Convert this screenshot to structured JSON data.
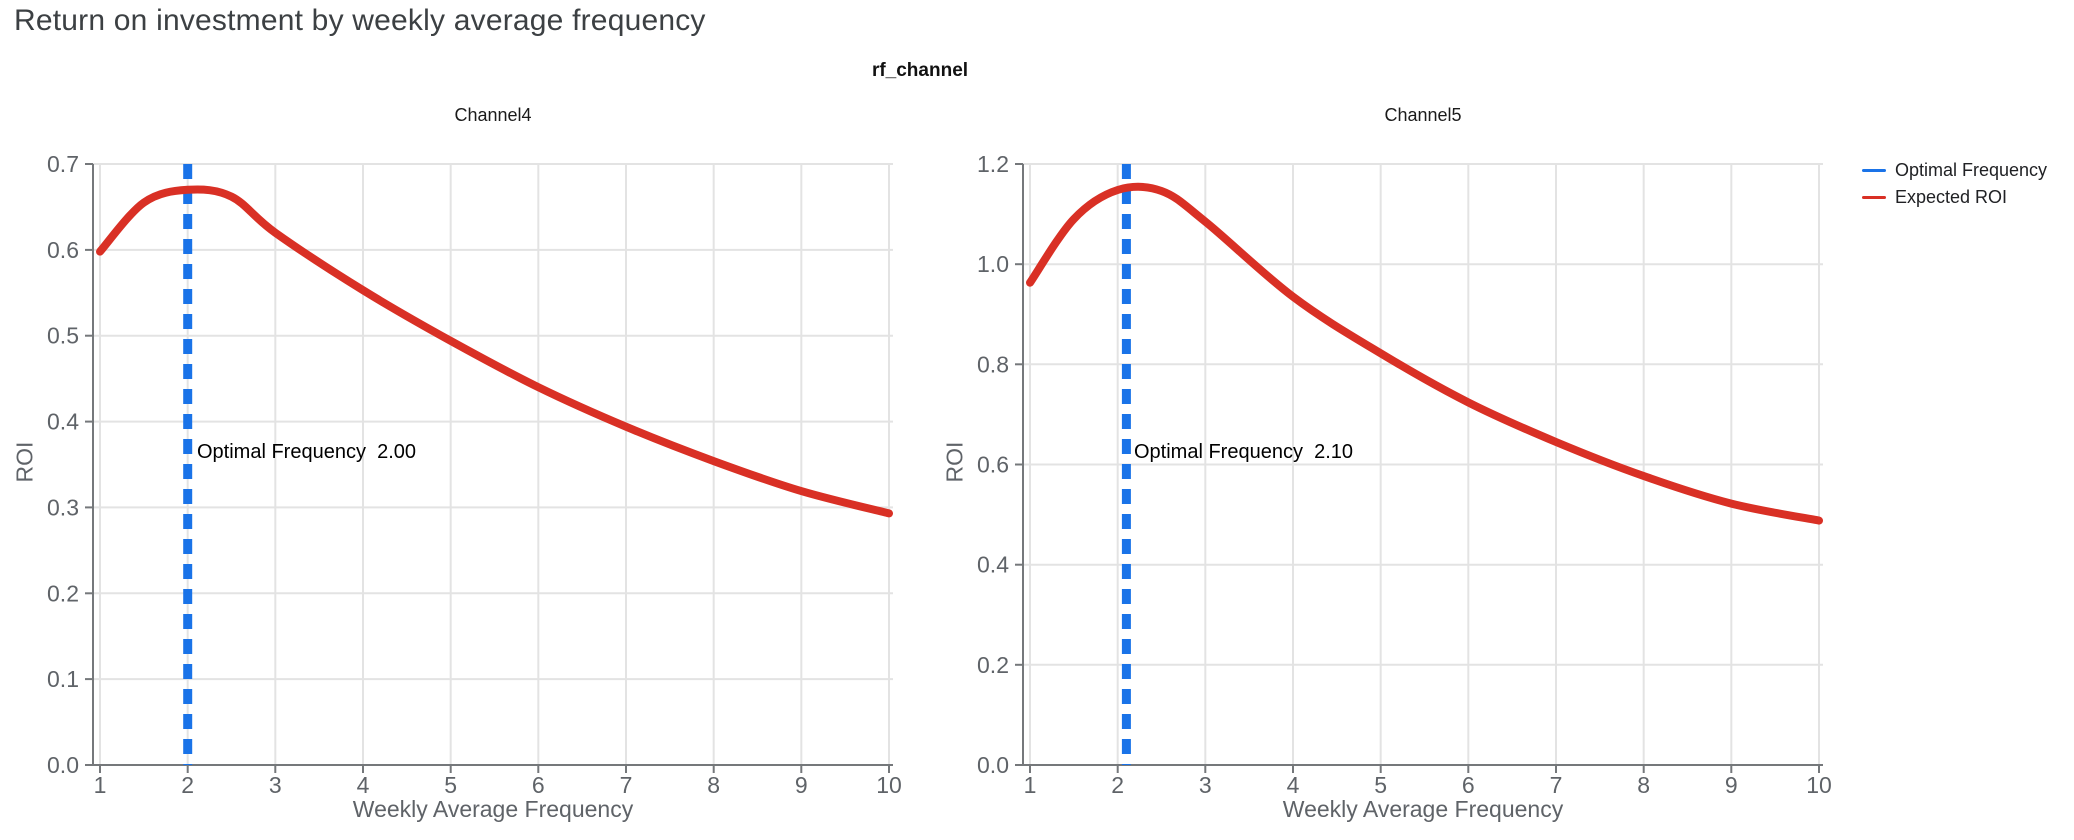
{
  "page": {
    "title": "Return on investment by weekly average frequency"
  },
  "figure": {
    "facet_label": "rf_channel",
    "legend": [
      {
        "label": "Optimal Frequency",
        "color": "#1a73e8"
      },
      {
        "label": "Expected ROI",
        "color": "#d93025"
      }
    ],
    "legend_position": "top-right"
  },
  "colors": {
    "optimal_line": "#1a73e8",
    "roi_line": "#d93025",
    "grid": "#e3e3e3",
    "axis": "#75787b",
    "tick_text": "#5f6368",
    "title_text": "#3c4043"
  },
  "chart_data": [
    {
      "type": "line",
      "title": "Channel4",
      "xlabel": "Weekly Average Frequency",
      "ylabel": "ROI",
      "grid": true,
      "x": [
        1,
        1.5,
        2,
        2.5,
        3,
        4,
        5,
        6,
        7,
        8,
        9,
        10
      ],
      "series": [
        {
          "name": "Expected ROI",
          "values": [
            0.598,
            0.655,
            0.67,
            0.662,
            0.62,
            0.553,
            0.494,
            0.44,
            0.394,
            0.354,
            0.319,
            0.293
          ]
        }
      ],
      "optimal_frequency": 2.0,
      "annotation": "Optimal Frequency  2.00",
      "xlim": [
        1,
        10
      ],
      "ylim": [
        0,
        0.7
      ],
      "xticks": [
        1,
        2,
        3,
        4,
        5,
        6,
        7,
        8,
        9,
        10
      ],
      "yticks": [
        0.0,
        0.1,
        0.2,
        0.3,
        0.4,
        0.5,
        0.6,
        0.7
      ]
    },
    {
      "type": "line",
      "title": "Channel5",
      "xlabel": "Weekly Average Frequency",
      "ylabel": "ROI",
      "grid": true,
      "x": [
        1,
        1.5,
        2,
        2.5,
        3,
        4,
        5,
        6,
        7,
        8,
        9,
        10
      ],
      "series": [
        {
          "name": "Expected ROI",
          "values": [
            0.963,
            1.09,
            1.148,
            1.146,
            1.085,
            0.935,
            0.822,
            0.724,
            0.645,
            0.577,
            0.522,
            0.488
          ]
        }
      ],
      "optimal_frequency": 2.1,
      "annotation": "Optimal Frequency  2.10",
      "xlim": [
        1,
        10
      ],
      "ylim": [
        0,
        1.2
      ],
      "xticks": [
        1,
        2,
        3,
        4,
        5,
        6,
        7,
        8,
        9,
        10
      ],
      "yticks": [
        0.0,
        0.2,
        0.4,
        0.6,
        0.8,
        1.0,
        1.2
      ]
    }
  ]
}
